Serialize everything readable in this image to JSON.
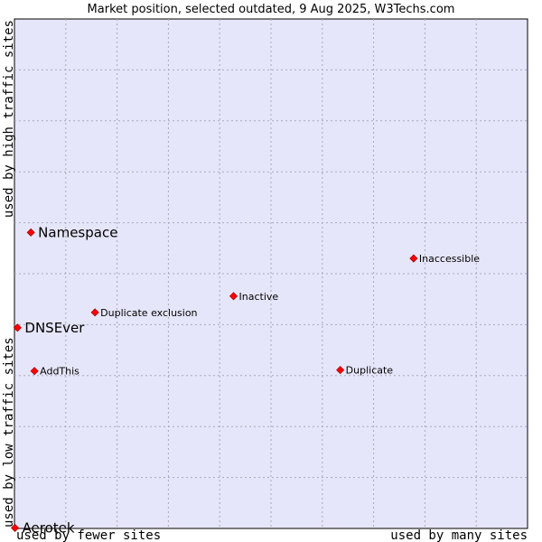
{
  "chart_data": {
    "type": "scatter",
    "title": "Market position, selected outdated, 9 Aug 2025, W3Techs.com",
    "xlabel_left": "used by fewer sites",
    "xlabel_right": "used by many sites",
    "ylabel_bottom": "used by low traffic sites",
    "ylabel_top": "used by high traffic sites",
    "xlim": [
      0,
      100
    ],
    "ylim": [
      0,
      100
    ],
    "grid": true,
    "colors": {
      "plot_background": "#e6e6fa",
      "grid": "#a8a8b8",
      "point": "#ff0000",
      "point_stroke": "#b00000"
    },
    "points": [
      {
        "name": "Namespace",
        "x": 3.2,
        "y": 58.1,
        "size": "large"
      },
      {
        "name": "DNSEver",
        "x": 0.6,
        "y": 39.4,
        "size": "large"
      },
      {
        "name": "Aerotek",
        "x": 0.1,
        "y": 0.1,
        "size": "large"
      },
      {
        "name": "Inaccessible",
        "x": 77.8,
        "y": 53.0,
        "size": "small"
      },
      {
        "name": "Inactive",
        "x": 42.7,
        "y": 45.6,
        "size": "small"
      },
      {
        "name": "Duplicate exclusion",
        "x": 15.7,
        "y": 42.4,
        "size": "small"
      },
      {
        "name": "AddThis",
        "x": 3.9,
        "y": 30.9,
        "size": "small"
      },
      {
        "name": "Duplicate",
        "x": 63.5,
        "y": 31.1,
        "size": "small"
      }
    ]
  }
}
